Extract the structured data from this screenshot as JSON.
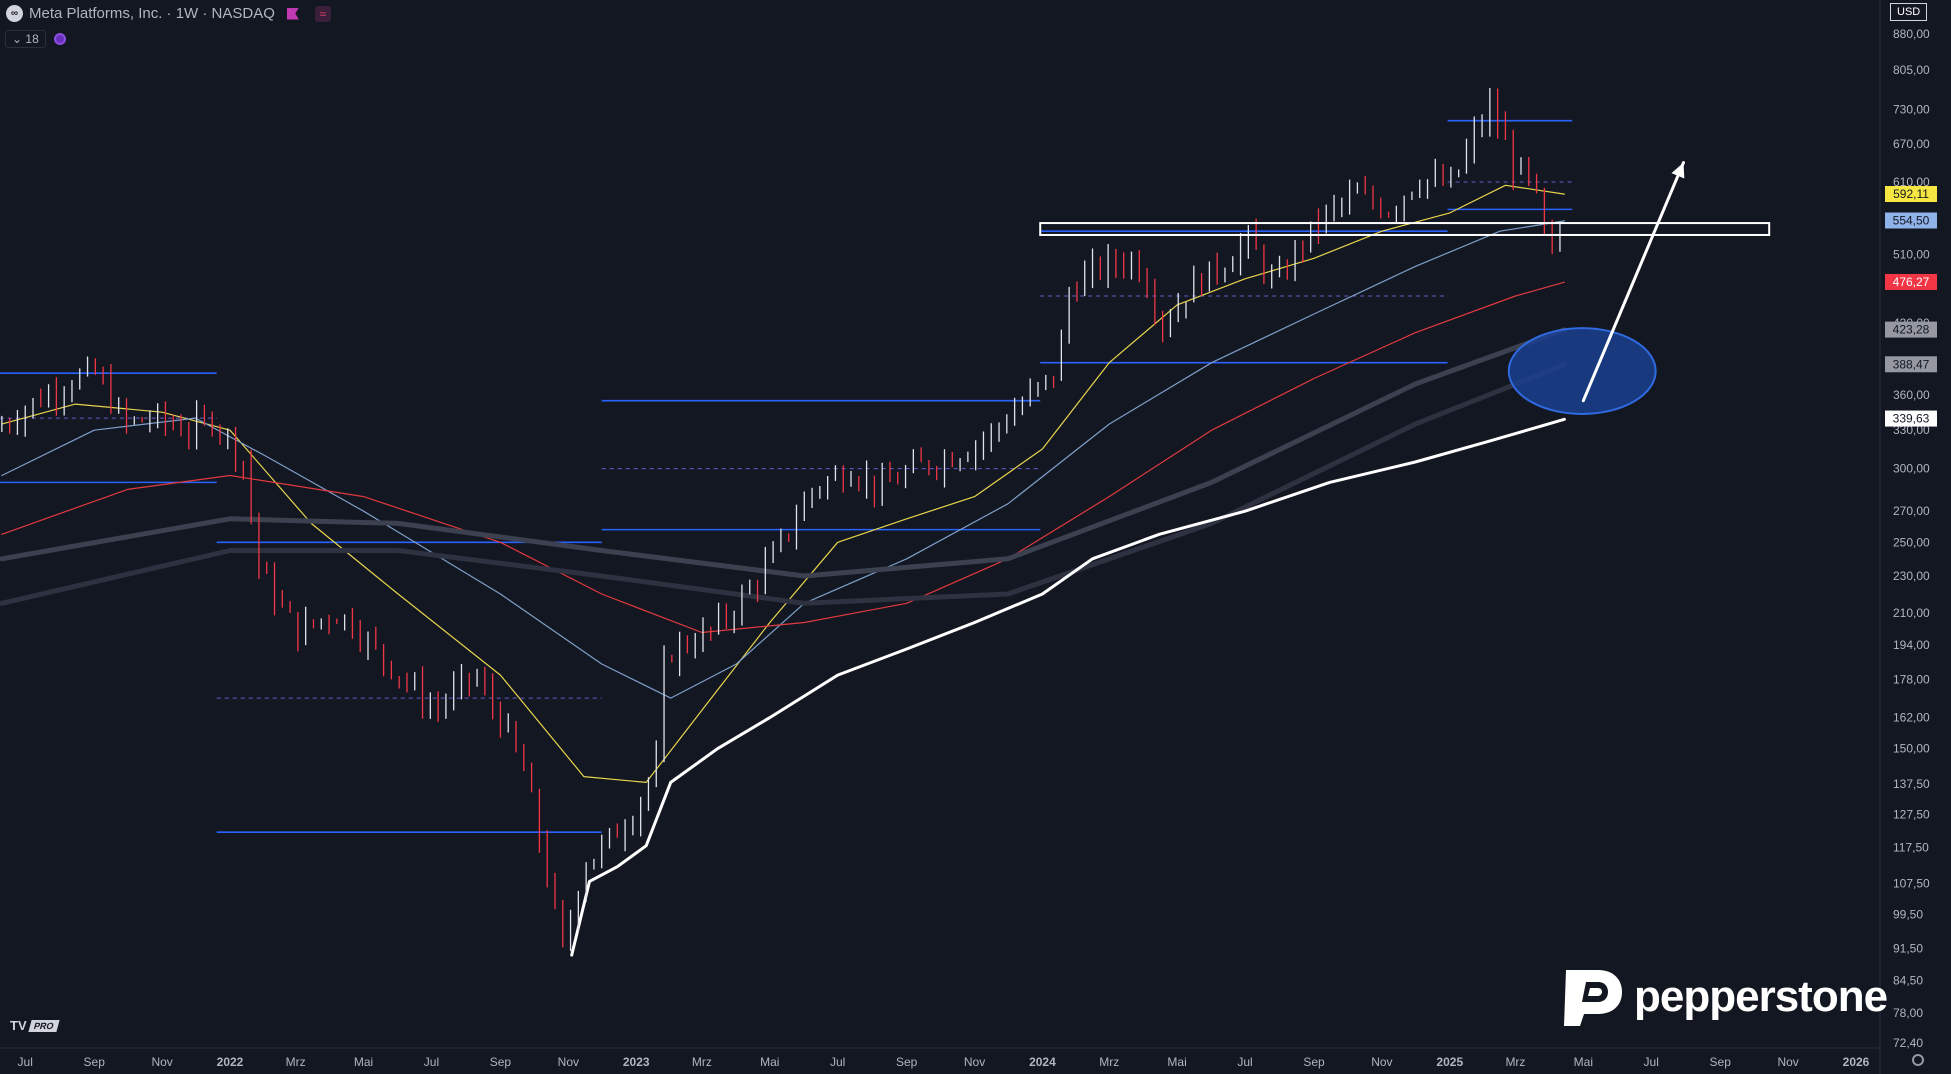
{
  "header": {
    "logo_glyph": "∞",
    "title": "Meta Platforms, Inc. · 1W · NASDAQ",
    "wave_glyph": "≈"
  },
  "indicators": {
    "count": "18",
    "chevron": "⌄"
  },
  "currency": "USD",
  "brand": "pepperstone",
  "branding": {
    "tv_mark": "TV",
    "tv_pro": "PRO"
  },
  "colors": {
    "bg": "#131722",
    "up": "#e0e3eb",
    "down": "#f23645",
    "ema_yellow": "#e8d44d",
    "ema_blue": "#7e9fc8",
    "ema_red": "#e03a3e",
    "ema_white": "#ffffff",
    "level_blue": "#2962ff",
    "dashed_purple": "#6a5acd"
  },
  "chart_data": {
    "type": "candlestick",
    "y_scale": "log",
    "ylim": [
      72.4,
      882
    ],
    "y_ticks": [
      {
        "v": 880,
        "label": "880,00"
      },
      {
        "v": 805,
        "label": "805,00"
      },
      {
        "v": 730,
        "label": "730,00"
      },
      {
        "v": 670,
        "label": "670,00"
      },
      {
        "v": 610,
        "label": "610,00"
      },
      {
        "v": 510,
        "label": "510,00"
      },
      {
        "v": 430,
        "label": "430,00"
      },
      {
        "v": 360,
        "label": "360,00"
      },
      {
        "v": 330,
        "label": "330,00"
      },
      {
        "v": 300,
        "label": "300,00"
      },
      {
        "v": 270,
        "label": "270,00"
      },
      {
        "v": 250,
        "label": "250,00"
      },
      {
        "v": 230,
        "label": "230,00"
      },
      {
        "v": 210,
        "label": "210,00"
      },
      {
        "v": 194,
        "label": "194,00"
      },
      {
        "v": 178,
        "label": "178,00"
      },
      {
        "v": 162,
        "label": "162,00"
      },
      {
        "v": 150,
        "label": "150,00"
      },
      {
        "v": 137.5,
        "label": "137,50"
      },
      {
        "v": 127.5,
        "label": "127,50"
      },
      {
        "v": 117.5,
        "label": "117,50"
      },
      {
        "v": 107.5,
        "label": "107,50"
      },
      {
        "v": 99.5,
        "label": "99,50"
      },
      {
        "v": 91.5,
        "label": "91,50"
      },
      {
        "v": 84.5,
        "label": "84,50"
      },
      {
        "v": 78,
        "label": "78,00"
      },
      {
        "v": 72.4,
        "label": "72,40"
      }
    ],
    "price_labels": [
      {
        "v": 592.11,
        "label": "592,11",
        "bg": "#f5e642",
        "fg": "#131722"
      },
      {
        "v": 554.5,
        "label": "554,50",
        "bg": "#8fb2e8",
        "fg": "#131722"
      },
      {
        "v": 476.27,
        "label": "476,27",
        "bg": "#f23645",
        "fg": "#ffffff"
      },
      {
        "v": 423.28,
        "label": "423,28",
        "bg": "#9598a1",
        "fg": "#131722"
      },
      {
        "v": 388.47,
        "label": "388,47",
        "bg": "#9598a1",
        "fg": "#131722"
      },
      {
        "v": 339.63,
        "label": "339,63",
        "bg": "#ffffff",
        "fg": "#131722"
      }
    ],
    "x_ticks": [
      {
        "d": "2021-07-01",
        "label": "Jul",
        "bold": false
      },
      {
        "d": "2021-09-01",
        "label": "Sep",
        "bold": false
      },
      {
        "d": "2021-11-01",
        "label": "Nov",
        "bold": false
      },
      {
        "d": "2022-01-01",
        "label": "2022",
        "bold": true
      },
      {
        "d": "2022-03-01",
        "label": "Mrz",
        "bold": false
      },
      {
        "d": "2022-05-01",
        "label": "Mai",
        "bold": false
      },
      {
        "d": "2022-07-01",
        "label": "Jul",
        "bold": false
      },
      {
        "d": "2022-09-01",
        "label": "Sep",
        "bold": false
      },
      {
        "d": "2022-11-01",
        "label": "Nov",
        "bold": false
      },
      {
        "d": "2023-01-01",
        "label": "2023",
        "bold": true
      },
      {
        "d": "2023-03-01",
        "label": "Mrz",
        "bold": false
      },
      {
        "d": "2023-05-01",
        "label": "Mai",
        "bold": false
      },
      {
        "d": "2023-07-01",
        "label": "Jul",
        "bold": false
      },
      {
        "d": "2023-09-01",
        "label": "Sep",
        "bold": false
      },
      {
        "d": "2023-11-01",
        "label": "Nov",
        "bold": false
      },
      {
        "d": "2024-01-01",
        "label": "2024",
        "bold": true
      },
      {
        "d": "2024-03-01",
        "label": "Mrz",
        "bold": false
      },
      {
        "d": "2024-05-01",
        "label": "Mai",
        "bold": false
      },
      {
        "d": "2024-07-01",
        "label": "Jul",
        "bold": false
      },
      {
        "d": "2024-09-01",
        "label": "Sep",
        "bold": false
      },
      {
        "d": "2024-11-01",
        "label": "Nov",
        "bold": false
      },
      {
        "d": "2025-01-01",
        "label": "2025",
        "bold": true
      },
      {
        "d": "2025-03-01",
        "label": "Mrz",
        "bold": false
      },
      {
        "d": "2025-05-01",
        "label": "Mai",
        "bold": false
      },
      {
        "d": "2025-07-01",
        "label": "Jul",
        "bold": false
      },
      {
        "d": "2025-09-01",
        "label": "Sep",
        "bold": false
      },
      {
        "d": "2025-11-01",
        "label": "Nov",
        "bold": false
      },
      {
        "d": "2026-01-01",
        "label": "2026",
        "bold": true
      }
    ],
    "price_path": [
      [
        "2021-06-10",
        330
      ],
      [
        "2021-07-10",
        350
      ],
      [
        "2021-08-20",
        375
      ],
      [
        "2021-09-10",
        380
      ],
      [
        "2021-10-05",
        335
      ],
      [
        "2021-11-01",
        340
      ],
      [
        "2021-12-01",
        330
      ],
      [
        "2021-12-25",
        340
      ],
      [
        "2022-01-20",
        305
      ],
      [
        "2022-02-04",
        232
      ],
      [
        "2022-03-10",
        200
      ],
      [
        "2022-04-10",
        210
      ],
      [
        "2022-04-28",
        205
      ],
      [
        "2022-05-12",
        195
      ],
      [
        "2022-06-10",
        180
      ],
      [
        "2022-07-10",
        165
      ],
      [
        "2022-08-15",
        180
      ],
      [
        "2022-09-10",
        160
      ],
      [
        "2022-10-01",
        140
      ],
      [
        "2022-10-27",
        100
      ],
      [
        "2022-11-04",
        90
      ],
      [
        "2022-11-20",
        112
      ],
      [
        "2022-12-10",
        118
      ],
      [
        "2023-01-05",
        128
      ],
      [
        "2023-01-27",
        145
      ],
      [
        "2023-02-03",
        190
      ],
      [
        "2023-03-15",
        200
      ],
      [
        "2023-04-10",
        215
      ],
      [
        "2023-05-10",
        240
      ],
      [
        "2023-06-15",
        285
      ],
      [
        "2023-07-20",
        300
      ],
      [
        "2023-08-15",
        285
      ],
      [
        "2023-09-15",
        300
      ],
      [
        "2023-10-20",
        310
      ],
      [
        "2023-11-20",
        325
      ],
      [
        "2023-12-20",
        352
      ],
      [
        "2024-01-20",
        380
      ],
      [
        "2024-02-02",
        470
      ],
      [
        "2024-03-01",
        495
      ],
      [
        "2024-04-01",
        505
      ],
      [
        "2024-04-26",
        430
      ],
      [
        "2024-05-20",
        470
      ],
      [
        "2024-06-20",
        500
      ],
      [
        "2024-07-10",
        530
      ],
      [
        "2024-08-05",
        470
      ],
      [
        "2024-08-25",
        520
      ],
      [
        "2024-09-20",
        565
      ],
      [
        "2024-10-15",
        590
      ],
      [
        "2024-11-15",
        570
      ],
      [
        "2024-12-10",
        615
      ],
      [
        "2025-01-10",
        605
      ],
      [
        "2025-01-31",
        690
      ],
      [
        "2025-02-14",
        735
      ],
      [
        "2025-03-05",
        640
      ],
      [
        "2025-03-25",
        600
      ],
      [
        "2025-04-07",
        500
      ],
      [
        "2025-04-14",
        540
      ]
    ],
    "moving_averages": [
      {
        "color": "#e8d44d",
        "width": 1.2,
        "points": [
          [
            "2021-06-10",
            335
          ],
          [
            "2021-08-15",
            352
          ],
          [
            "2021-11-01",
            345
          ],
          [
            "2022-01-01",
            330
          ],
          [
            "2022-03-15",
            262
          ],
          [
            "2022-06-01",
            220
          ],
          [
            "2022-09-01",
            180
          ],
          [
            "2022-11-15",
            140
          ],
          [
            "2023-01-10",
            138
          ],
          [
            "2023-03-01",
            165
          ],
          [
            "2023-05-01",
            205
          ],
          [
            "2023-07-01",
            250
          ],
          [
            "2023-09-01",
            265
          ],
          [
            "2023-11-01",
            280
          ],
          [
            "2024-01-01",
            315
          ],
          [
            "2024-03-01",
            390
          ],
          [
            "2024-05-01",
            450
          ],
          [
            "2024-07-01",
            480
          ],
          [
            "2024-09-01",
            505
          ],
          [
            "2024-11-01",
            540
          ],
          [
            "2025-01-01",
            565
          ],
          [
            "2025-02-20",
            605
          ],
          [
            "2025-04-14",
            592
          ]
        ]
      },
      {
        "color": "#7e9fc8",
        "width": 1.2,
        "points": [
          [
            "2021-06-10",
            295
          ],
          [
            "2021-09-01",
            330
          ],
          [
            "2021-12-01",
            340
          ],
          [
            "2022-02-01",
            310
          ],
          [
            "2022-05-01",
            270
          ],
          [
            "2022-09-01",
            220
          ],
          [
            "2022-12-01",
            185
          ],
          [
            "2023-02-01",
            170
          ],
          [
            "2023-04-01",
            185
          ],
          [
            "2023-06-01",
            215
          ],
          [
            "2023-09-01",
            240
          ],
          [
            "2023-12-01",
            275
          ],
          [
            "2024-03-01",
            335
          ],
          [
            "2024-06-01",
            390
          ],
          [
            "2024-09-01",
            440
          ],
          [
            "2024-12-01",
            495
          ],
          [
            "2025-02-15",
            540
          ],
          [
            "2025-04-14",
            554
          ]
        ]
      },
      {
        "color": "#e03a3e",
        "width": 1.2,
        "points": [
          [
            "2021-06-10",
            255
          ],
          [
            "2021-10-01",
            285
          ],
          [
            "2022-01-01",
            295
          ],
          [
            "2022-05-01",
            280
          ],
          [
            "2022-09-01",
            250
          ],
          [
            "2022-12-01",
            220
          ],
          [
            "2023-03-01",
            200
          ],
          [
            "2023-06-01",
            205
          ],
          [
            "2023-09-01",
            215
          ],
          [
            "2023-12-01",
            240
          ],
          [
            "2024-03-01",
            280
          ],
          [
            "2024-06-01",
            330
          ],
          [
            "2024-09-01",
            375
          ],
          [
            "2024-12-01",
            420
          ],
          [
            "2025-03-01",
            460
          ],
          [
            "2025-04-14",
            476
          ]
        ]
      },
      {
        "color": "#3c4150",
        "width": 5,
        "points": [
          [
            "2021-06-10",
            240
          ],
          [
            "2022-01-01",
            265
          ],
          [
            "2022-06-01",
            262
          ],
          [
            "2022-12-01",
            245
          ],
          [
            "2023-06-01",
            230
          ],
          [
            "2023-12-01",
            240
          ],
          [
            "2024-06-01",
            290
          ],
          [
            "2024-12-01",
            370
          ],
          [
            "2025-04-14",
            423
          ]
        ]
      },
      {
        "color": "#2e3240",
        "width": 5,
        "points": [
          [
            "2021-06-10",
            215
          ],
          [
            "2022-01-01",
            245
          ],
          [
            "2022-06-01",
            245
          ],
          [
            "2022-12-01",
            230
          ],
          [
            "2023-06-01",
            215
          ],
          [
            "2023-12-01",
            220
          ],
          [
            "2024-06-01",
            262
          ],
          [
            "2024-12-01",
            335
          ],
          [
            "2025-04-14",
            388
          ]
        ]
      },
      {
        "color": "#ffffff",
        "width": 3,
        "points": [
          [
            "2022-11-04",
            90
          ],
          [
            "2022-11-20",
            108
          ],
          [
            "2022-12-15",
            112
          ],
          [
            "2023-01-10",
            118
          ],
          [
            "2023-02-01",
            138
          ],
          [
            "2023-03-15",
            150
          ],
          [
            "2023-05-01",
            162
          ],
          [
            "2023-07-01",
            180
          ],
          [
            "2023-09-01",
            192
          ],
          [
            "2023-11-01",
            205
          ],
          [
            "2024-01-01",
            220
          ],
          [
            "2024-02-15",
            240
          ],
          [
            "2024-04-15",
            255
          ],
          [
            "2024-07-01",
            270
          ],
          [
            "2024-09-15",
            290
          ],
          [
            "2024-12-01",
            305
          ],
          [
            "2025-02-01",
            320
          ],
          [
            "2025-04-14",
            339
          ]
        ]
      }
    ],
    "horizontal_levels": [
      {
        "y": 380,
        "x1": "2021-06-01",
        "x2": "2021-12-20",
        "color": "#2962ff"
      },
      {
        "y": 290,
        "x1": "2021-06-01",
        "x2": "2021-12-20",
        "color": "#2962ff"
      },
      {
        "y": 250,
        "x1": "2021-12-20",
        "x2": "2022-12-01",
        "color": "#2962ff"
      },
      {
        "y": 122,
        "x1": "2021-12-20",
        "x2": "2022-12-01",
        "color": "#2962ff"
      },
      {
        "y": 355,
        "x1": "2022-12-01",
        "x2": "2023-12-30",
        "color": "#2962ff"
      },
      {
        "y": 258,
        "x1": "2022-12-01",
        "x2": "2023-12-30",
        "color": "#2962ff"
      },
      {
        "y": 390,
        "x1": "2023-12-30",
        "x2": "2024-12-30",
        "color": "#2962ff"
      },
      {
        "y": 540,
        "x1": "2023-12-30",
        "x2": "2024-12-30",
        "color": "#2962ff"
      },
      {
        "y": 710,
        "x1": "2024-12-30",
        "x2": "2025-04-21",
        "color": "#2962ff"
      },
      {
        "y": 570,
        "x1": "2024-12-30",
        "x2": "2025-04-21",
        "color": "#2962ff"
      },
      {
        "y": 340,
        "x1": "2021-06-01",
        "x2": "2021-12-20",
        "color": "#6a5acd",
        "dashed": true
      },
      {
        "y": 170,
        "x1": "2021-12-20",
        "x2": "2022-12-01",
        "color": "#6a5acd",
        "dashed": true
      },
      {
        "y": 300,
        "x1": "2022-12-01",
        "x2": "2023-12-30",
        "color": "#6a5acd",
        "dashed": true
      },
      {
        "y": 460,
        "x1": "2023-12-30",
        "x2": "2024-12-30",
        "color": "#6a5acd",
        "dashed": true
      },
      {
        "y": 610,
        "x1": "2024-12-30",
        "x2": "2025-04-21",
        "color": "#6a5acd",
        "dashed": true
      }
    ],
    "annotations": [
      {
        "kind": "rect",
        "x1": "2023-12-30",
        "x2": "2025-10-15",
        "y1": 551,
        "y2": 535,
        "stroke": "#ffffff"
      },
      {
        "kind": "ellipse",
        "cx": "2025-04-30",
        "cy": 382,
        "rx_days": 66,
        "ry_ratio": 1.112,
        "fill": "#1b3f8f",
        "stroke": "#2f6ae0"
      },
      {
        "kind": "arrow",
        "from": [
          "2025-05-01",
          355
        ],
        "to": [
          "2025-07-30",
          640
        ],
        "color": "#ffffff"
      }
    ]
  }
}
